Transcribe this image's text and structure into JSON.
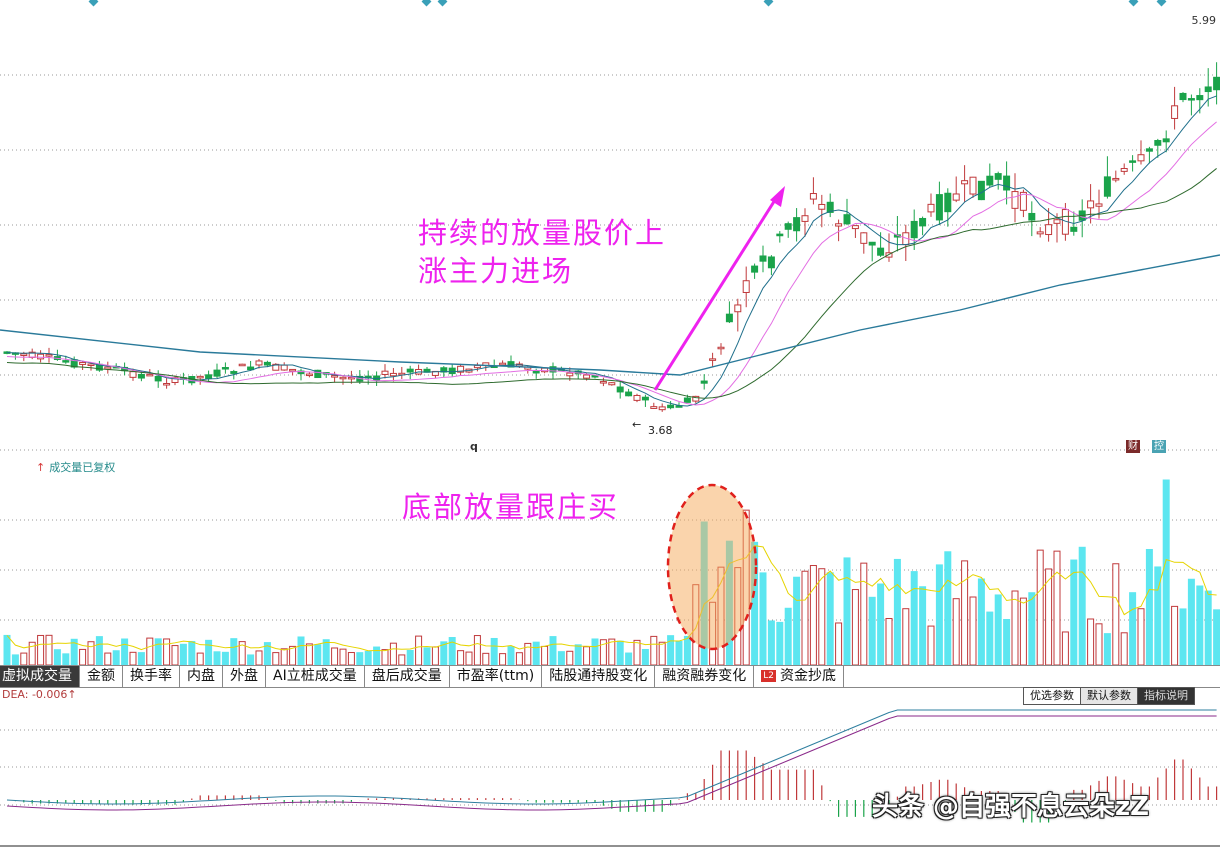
{
  "price_chart": {
    "max_label": "5.99",
    "min_label": "3.68",
    "min_arrow": "←",
    "cursor_marker": "q",
    "badges": [
      "财",
      "控"
    ],
    "annotation_line1": "持续的放量股价上",
    "annotation_line2": "涨主力进场"
  },
  "volume_chart": {
    "title_arrow": "↑",
    "title": "成交量已复权",
    "annotation": "底部放量跟庄买"
  },
  "indicator_tabs": [
    {
      "label": "虚拟成交量",
      "active": true
    },
    {
      "label": "金额"
    },
    {
      "label": "换手率"
    },
    {
      "label": "内盘"
    },
    {
      "label": "外盘"
    },
    {
      "label": "AI立桩成交量"
    },
    {
      "label": "盘后成交量"
    },
    {
      "label": "市盈率(ttm)"
    },
    {
      "label": "陆股通持股变化"
    },
    {
      "label": "融资融券变化"
    },
    {
      "label": "资金抄底",
      "badge": "L2"
    }
  ],
  "macd_chart": {
    "title": "DEA: -0.006",
    "title_arrow": "↑"
  },
  "param_buttons": [
    "优选参数",
    "默认参数",
    "指标说明"
  ],
  "watermark": "头条 @自强不息云朵zZ",
  "colors": {
    "up": "#c0393b",
    "down": "#1aa34a",
    "volume_down": "#5ce6f0",
    "ma5": "#1f6f8b",
    "ma10": "#e36ee3",
    "ma20": "#2f6b2f",
    "ma60": "#2a7a9a",
    "annotation": "#ee22ee"
  }
}
